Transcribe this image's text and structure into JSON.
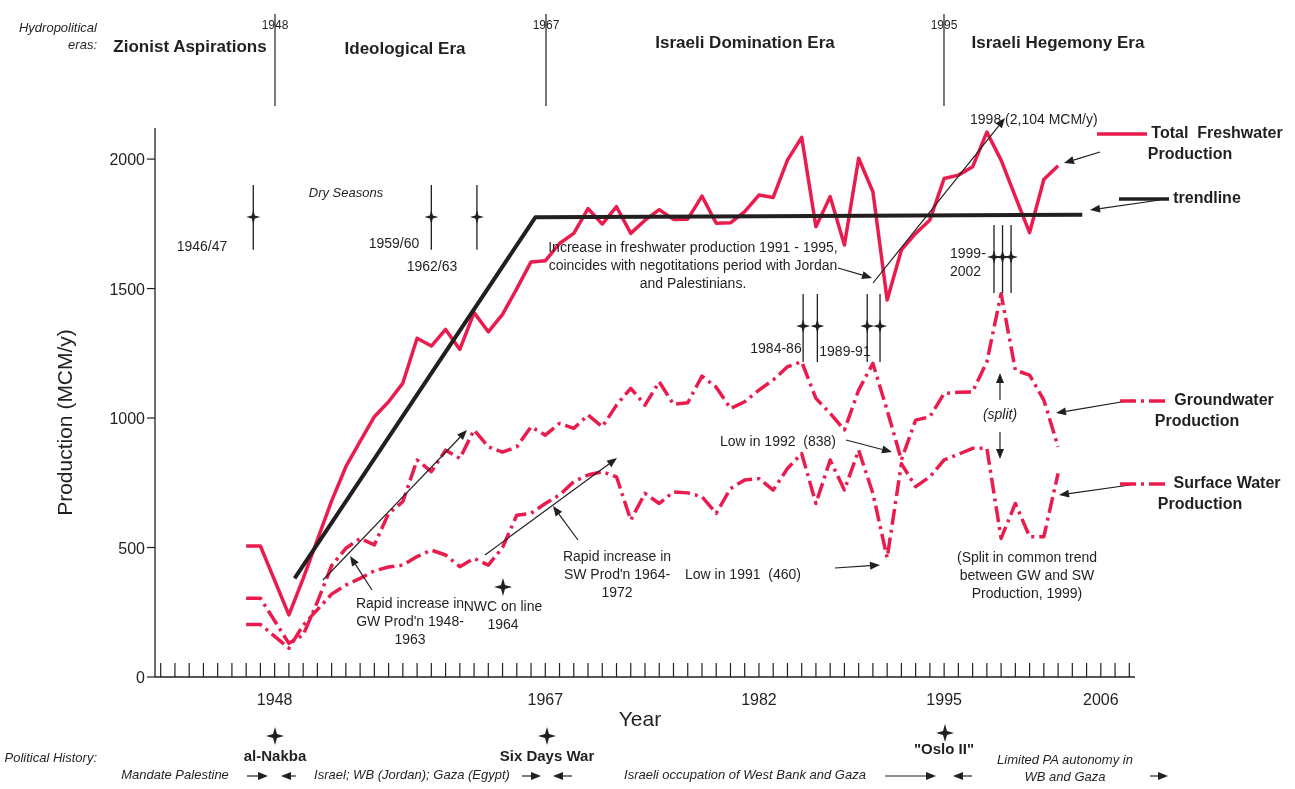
{
  "chart_data": {
    "type": "line",
    "xlabel": "Year",
    "ylabel": "Production (MCM/y)",
    "x": [
      1946,
      1947,
      1949,
      1950,
      1951,
      1952,
      1953,
      1954,
      1955,
      1956,
      1957,
      1958,
      1959,
      1960,
      1961,
      1962,
      1963,
      1964,
      1965,
      1966,
      1967,
      1968,
      1969,
      1970,
      1971,
      1972,
      1973,
      1974,
      1975,
      1976,
      1977,
      1978,
      1979,
      1980,
      1981,
      1982,
      1983,
      1984,
      1985,
      1986,
      1987,
      1988,
      1989,
      1990,
      1991,
      1992,
      1993,
      1994,
      1995,
      1996,
      1997,
      1998,
      1999,
      2000,
      2001,
      2002,
      2003
    ],
    "series": [
      {
        "name": "Total  Freshwater Production",
        "color": "#ea1c4d",
        "line_style": "solid",
        "values": [
          506,
          506,
          240,
          380,
          530,
          680,
          812,
          910,
          1005,
          1063,
          1135,
          1308,
          1278,
          1342,
          1265,
          1407,
          1333,
          1400,
          1500,
          1603,
          1607,
          1674,
          1713,
          1809,
          1749,
          1816,
          1713,
          1764,
          1805,
          1767,
          1768,
          1857,
          1752,
          1754,
          1797,
          1861,
          1852,
          1996,
          2084,
          1739,
          1855,
          1668,
          2003,
          1874,
          1456,
          1649,
          1713,
          1765,
          1925,
          1938,
          1970,
          2104,
          1996,
          1855,
          1716,
          1921,
          1974
        ]
      },
      {
        "name": "trendline",
        "color": "#231f20",
        "line_style": "solid",
        "x": [
          1949.4,
          1966.3,
          2004.7
        ],
        "values": [
          381,
          1775,
          1785
        ]
      },
      {
        "name": "Groundwater Production",
        "color": "#ea1c4d",
        "line_style": "dashed",
        "values": [
          304,
          304,
          130,
          162,
          290,
          430,
          497,
          535,
          510,
          632,
          677,
          838,
          793,
          876,
          844,
          954,
          889,
          868,
          889,
          966,
          934,
          979,
          960,
          1012,
          966,
          1050,
          1115,
          1050,
          1140,
          1053,
          1059,
          1162,
          1119,
          1037,
          1063,
          1108,
          1147,
          1198,
          1217,
          1076,
          1018,
          954,
          1108,
          1211,
          1030,
          838,
          992,
          1005,
          1095,
          1100,
          1101,
          1217,
          1480,
          1185,
          1166,
          1069,
          889
        ]
      },
      {
        "name": "Surface Water Production",
        "color": "#ea1c4d",
        "line_style": "dashed",
        "values": [
          203,
          203,
          111,
          200,
          260,
          320,
          355,
          381,
          410,
          425,
          432,
          465,
          490,
          471,
          426,
          458,
          432,
          500,
          625,
          632,
          670,
          703,
          754,
          780,
          793,
          773,
          606,
          709,
          670,
          715,
          711,
          696,
          632,
          728,
          761,
          766,
          722,
          805,
          863,
          670,
          838,
          722,
          876,
          709,
          460,
          824,
          735,
          773,
          838,
          860,
          883,
          883,
          535,
          670,
          542,
          542,
          786
        ]
      },
      {
        "type": "scatter",
        "color": "#231f20",
        "marker": "star",
        "x": [
          1946.5,
          1959,
          1962.2,
          1985.1,
          1986.1,
          1989.6,
          1990.5,
          1998.5,
          1999.1,
          1999.7
        ],
        "values": [
          1776,
          1776,
          1776,
          1355,
          1355,
          1355,
          1355,
          1622,
          1622,
          1622
        ],
        "errors": [
          [
            1650,
            1900
          ],
          [
            1650,
            1900
          ],
          [
            1650,
            1900
          ],
          [
            1216,
            1479
          ],
          [
            1216,
            1479
          ],
          [
            1216,
            1479
          ],
          [
            1216,
            1479
          ],
          [
            1483,
            1745
          ],
          [
            1483,
            1745
          ],
          [
            1483,
            1745
          ]
        ]
      }
    ],
    "xlim": [
      1939.6,
      2008.4
    ],
    "xticks": [
      {
        "value": 1940,
        "label": null
      },
      {
        "value": 1941,
        "label": null
      },
      {
        "value": 1942,
        "label": null
      },
      {
        "value": 1943,
        "label": null
      },
      {
        "value": 1944,
        "label": null
      },
      {
        "value": 1945,
        "label": null
      },
      {
        "value": 1946,
        "label": null
      },
      {
        "value": 1947,
        "label": null
      },
      1948,
      {
        "value": 1949,
        "label": null
      },
      {
        "value": 1950,
        "label": null
      },
      {
        "value": 1951,
        "label": null
      },
      {
        "value": 1952,
        "label": null
      },
      {
        "value": 1953,
        "label": null
      },
      {
        "value": 1954,
        "label": null
      },
      {
        "value": 1955,
        "label": null
      },
      {
        "value": 1956,
        "label": null
      },
      {
        "value": 1957,
        "label": null
      },
      {
        "value": 1958,
        "label": null
      },
      {
        "value": 1959,
        "label": null
      },
      {
        "value": 1960,
        "label": null
      },
      {
        "value": 1961,
        "label": null
      },
      {
        "value": 1962,
        "label": null
      },
      {
        "value": 1963,
        "label": null
      },
      {
        "value": 1964,
        "label": null
      },
      {
        "value": 1965,
        "label": null
      },
      {
        "value": 1966,
        "label": null
      },
      1967,
      {
        "value": 1968,
        "label": null
      },
      {
        "value": 1969,
        "label": null
      },
      {
        "value": 1970,
        "label": null
      },
      {
        "value": 1971,
        "label": null
      },
      {
        "value": 1972,
        "label": null
      },
      {
        "value": 1973,
        "label": null
      },
      {
        "value": 1974,
        "label": null
      },
      {
        "value": 1975,
        "label": null
      },
      {
        "value": 1976,
        "label": null
      },
      {
        "value": 1977,
        "label": null
      },
      {
        "value": 1978,
        "label": null
      },
      {
        "value": 1979,
        "label": null
      },
      {
        "value": 1980,
        "label": null
      },
      {
        "value": 1981,
        "label": null
      },
      1982,
      {
        "value": 1983,
        "label": null
      },
      {
        "value": 1984,
        "label": null
      },
      {
        "value": 1985,
        "label": null
      },
      {
        "value": 1986,
        "label": null
      },
      {
        "value": 1987,
        "label": null
      },
      {
        "value": 1988,
        "label": null
      },
      {
        "value": 1989,
        "label": null
      },
      {
        "value": 1990,
        "label": null
      },
      {
        "value": 1991,
        "label": null
      },
      {
        "value": 1992,
        "label": null
      },
      {
        "value": 1993,
        "label": null
      },
      {
        "value": 1994,
        "label": null
      },
      1995,
      {
        "value": 1996,
        "label": null
      },
      {
        "value": 1997,
        "label": null
      },
      {
        "value": 1998,
        "label": null
      },
      {
        "value": 1999,
        "label": null
      },
      {
        "value": 2000,
        "label": null
      },
      {
        "value": 2001,
        "label": null
      },
      {
        "value": 2002,
        "label": null
      },
      {
        "value": 2003,
        "label": null
      },
      {
        "value": 2004,
        "label": null
      },
      {
        "value": 2005,
        "label": null
      },
      2006,
      {
        "value": 2007,
        "label": null
      },
      {
        "value": 2008,
        "label": null
      }
    ],
    "ylim": [
      0,
      2120
    ],
    "yticks": [
      0,
      500,
      1000,
      1500,
      2000
    ],
    "grid": false,
    "legend": "right",
    "annotations": [
      "Hydropolitical eras:",
      "Zionist Aspirations",
      "Ideological Era",
      "Israeli Domination Era",
      "Israeli Hegemony Era",
      "Dry Seasons",
      "1948",
      "1967",
      "1995",
      "1946/47",
      "1959/60",
      "1962/63",
      "1984-86",
      "1989-91",
      "1999-2002",
      "Increase in freshwater production 1991 - 1995,  coincides with negotitations period with Jordan and Palestinians.",
      {
        "text": "1998 (2,104 MCM/y)",
        "x": 1998,
        "y": 2104
      },
      "Rapid increase in GW Prod'n 1948-1963",
      "NWC on line 1964",
      "Rapid increase in SW Prod'n 1964-1972",
      "Low in 1991  (460)",
      "Low in 1992  (838)",
      "(split)",
      "(Split in common trend between GW and SW Production, 1999)",
      "Political History:",
      "al-Nakba",
      "Six Days War",
      "\"Oslo II\"",
      "Mandate Palestine",
      "Israel; WB (Jordan); Gaza (Egypt)",
      "Israeli occupation of West Bank and Gaza",
      "Limited PA autonomy in WB and Gaza"
    ]
  }
}
